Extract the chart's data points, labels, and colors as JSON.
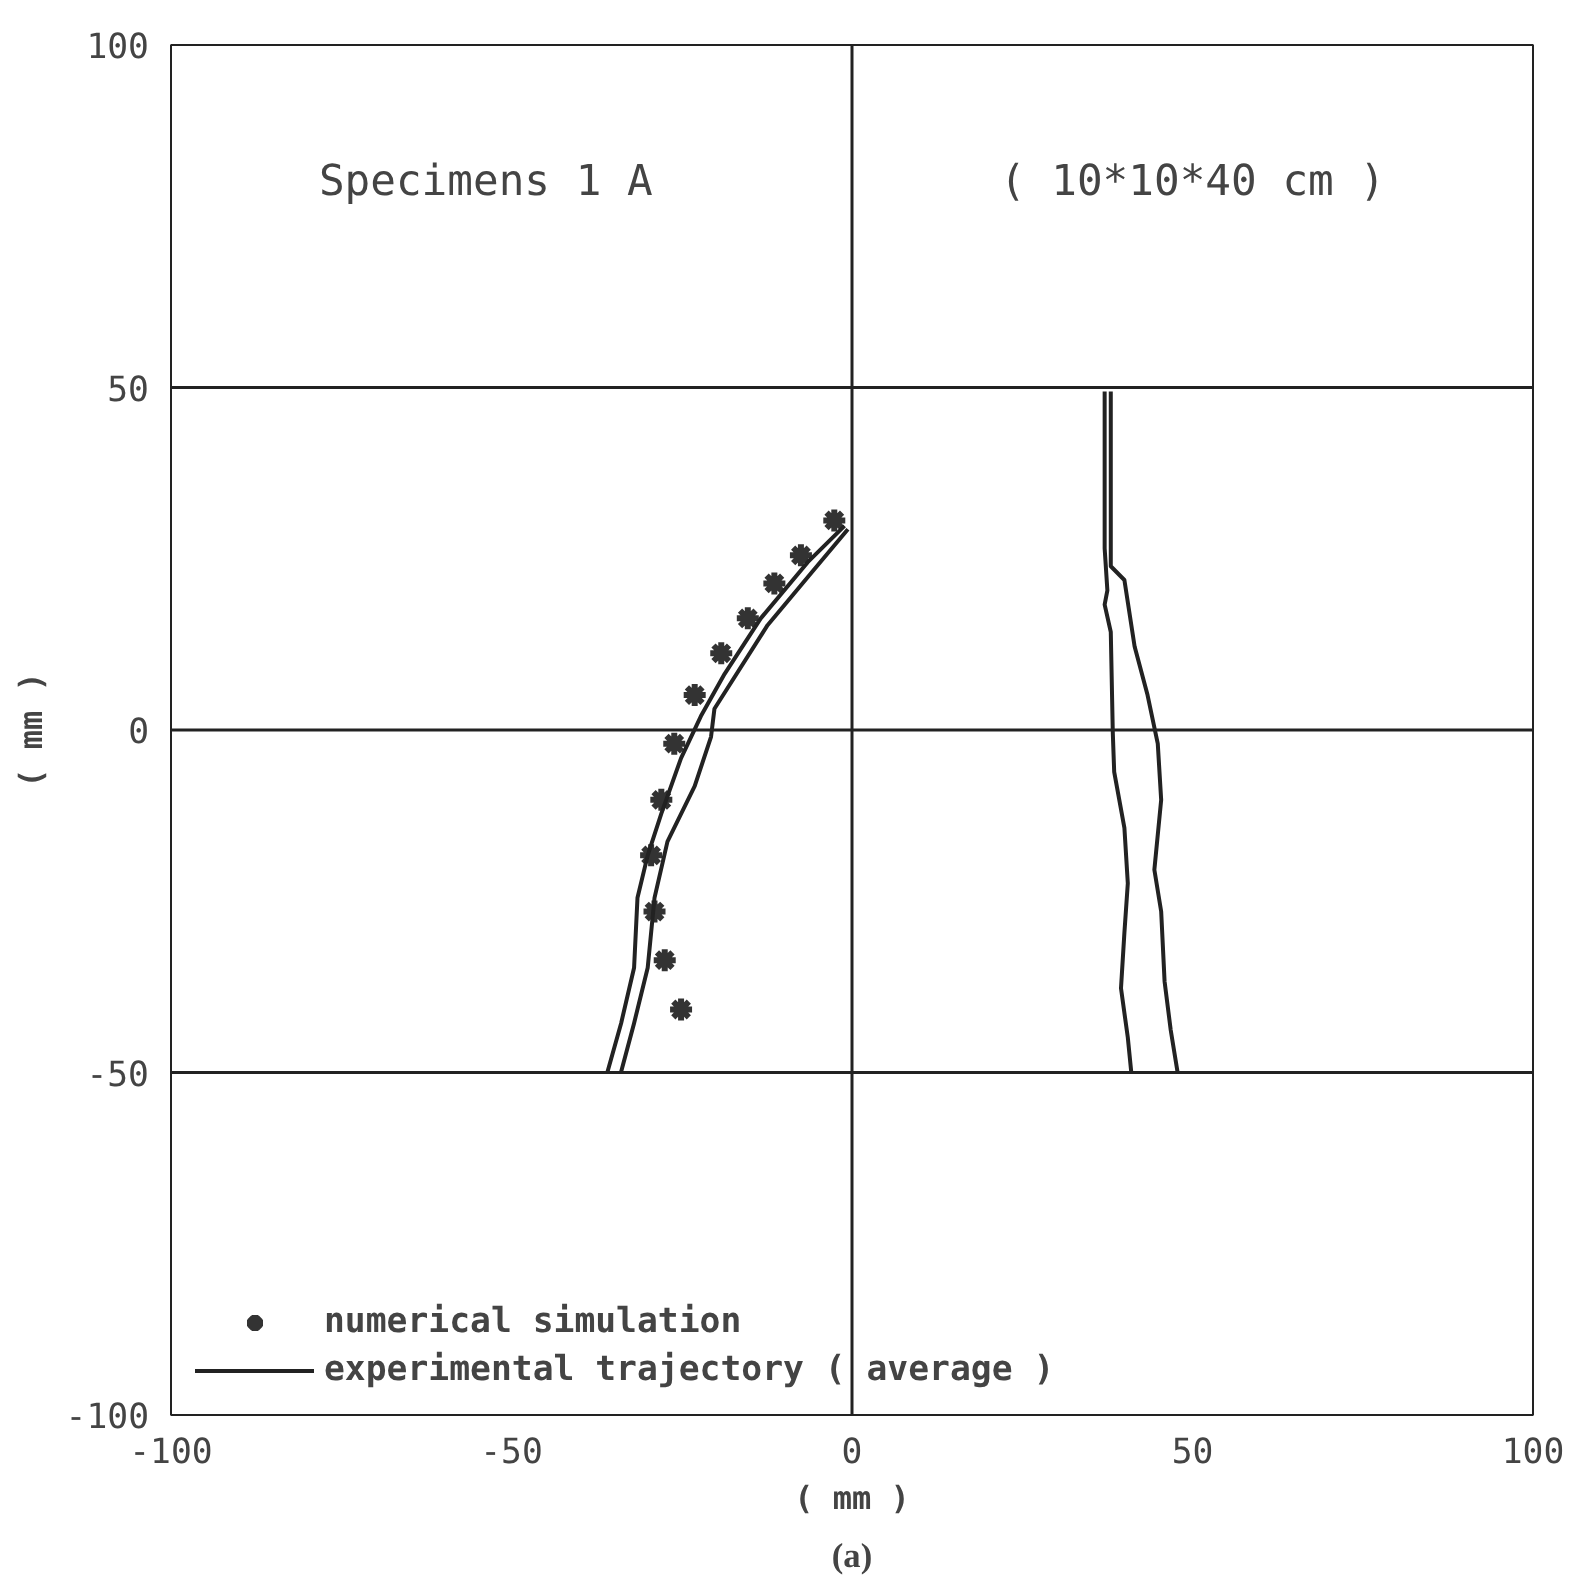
{
  "chart_data": {
    "type": "line",
    "title": "Specimens   1 A",
    "subtitle": "( 10*10*40 cm )",
    "xlabel": "( mm )",
    "ylabel": "( mm )",
    "xlim": [
      -100,
      100
    ],
    "ylim": [
      -100,
      100
    ],
    "xticks": [
      -100,
      -50,
      0,
      50,
      100
    ],
    "yticks": [
      -100,
      -50,
      0,
      50,
      100
    ],
    "grid": false,
    "legend": "bottom left",
    "series": [
      {
        "name": "numerical simulation",
        "type": "scatter",
        "marker": "cross",
        "color": "#333333",
        "x": [
          -2.6,
          -7.5,
          -11.4,
          -15.3,
          -19.2,
          -23.1,
          -26.1,
          -28.0,
          -29.5,
          -29.0,
          -27.5,
          -25.1
        ],
        "values": [
          30.6,
          25.5,
          21.4,
          16.3,
          11.2,
          5.1,
          -2.0,
          -10.2,
          -18.3,
          -26.5,
          -33.6,
          -40.8
        ]
      },
      {
        "name": "experimental trajectory ( average )",
        "color": "#222222",
        "x": [
          -1.1,
          -6.5,
          -13.4,
          -18.7,
          -22.2,
          -25.1,
          -28.0,
          -30.0,
          -31.5,
          -32.0,
          -33.9,
          -35.9
        ],
        "values": [
          29.8,
          24.5,
          16.3,
          8.2,
          2.0,
          -4.1,
          -12.2,
          -18.3,
          -24.5,
          -34.7,
          -42.8,
          -49.9
        ]
      },
      {
        "type": "line",
        "color": "#222222",
        "x": [
          -0.6,
          -5.5,
          -12.4,
          -20.2,
          -20.7,
          -23.1,
          -27.1,
          -29.0,
          -30.0,
          -32.0,
          -33.9
        ],
        "values": [
          29.3,
          23.5,
          15.3,
          3.1,
          -1.0,
          -8.2,
          -16.3,
          -24.5,
          -34.7,
          -42.8,
          -49.9
        ]
      },
      {
        "type": "line",
        "color": "#222222",
        "x": [
          37.1,
          37.1,
          37.5,
          37.1,
          38.0,
          38.3,
          38.5,
          40.0,
          40.5,
          40.0,
          39.5,
          40.5,
          41.0
        ],
        "values": [
          49.4,
          26.5,
          20.4,
          18.3,
          14.3,
          -0.5,
          -6.1,
          -14.3,
          -22.4,
          -29.6,
          -37.7,
          -44.9,
          -49.9
        ]
      },
      {
        "type": "line",
        "color": "#222222",
        "x": [
          38.0,
          38.0,
          40.0,
          41.5,
          43.4,
          44.9,
          45.4,
          44.4,
          45.4,
          45.9,
          46.8,
          47.8
        ],
        "values": [
          49.4,
          23.9,
          21.9,
          12.2,
          5.1,
          -2.0,
          -10.2,
          -20.4,
          -26.5,
          -36.7,
          -43.8,
          -49.9
        ]
      }
    ],
    "ref_lines": [
      {
        "axis": "y",
        "value": 50,
        "color": "#222222"
      },
      {
        "axis": "y",
        "value": -50,
        "color": "#222222"
      },
      {
        "axis": "y",
        "value": 0,
        "color": "#222222"
      },
      {
        "axis": "x",
        "value": 0,
        "color": "#222222"
      }
    ],
    "annotations": [
      "(a)"
    ]
  }
}
